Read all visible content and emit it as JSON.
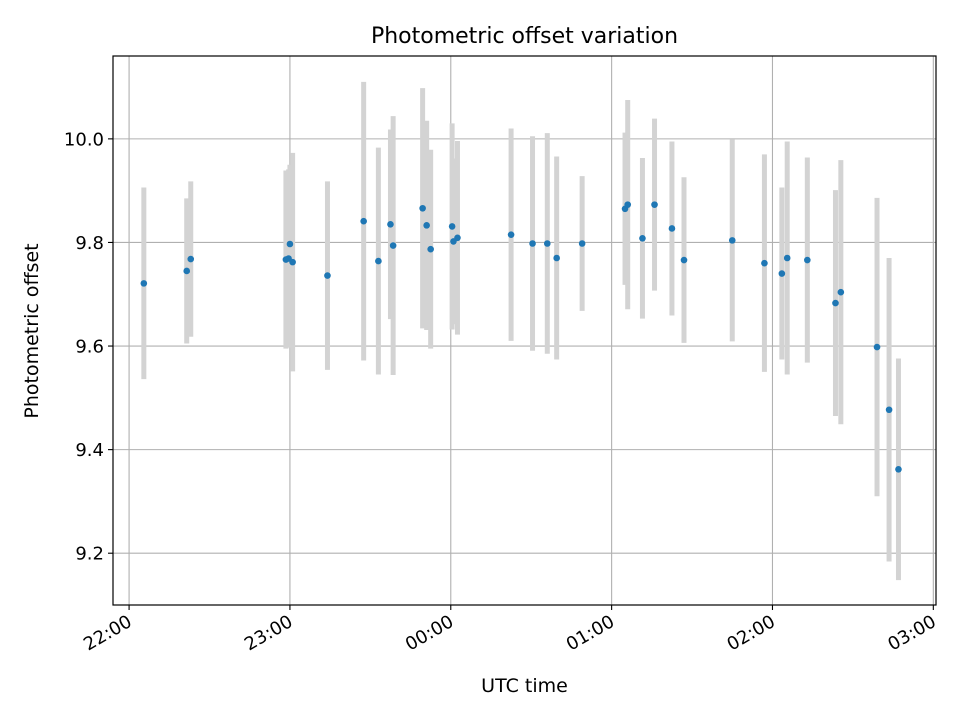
{
  "chart_data": {
    "type": "scatter",
    "title": "Photometric offset variation",
    "xlabel": "UTC time",
    "ylabel": "Photometric offset",
    "x_ticks": [
      "22:00",
      "23:00",
      "00:00",
      "01:00",
      "02:00",
      "03:00"
    ],
    "y_ticks": [
      "9.2",
      "9.4",
      "9.6",
      "9.8",
      "10.0"
    ],
    "xlim": [
      "21:54",
      "03:01"
    ],
    "ylim": [
      9.1,
      10.16
    ],
    "grid": true,
    "colors": {
      "point": "#1f77b4",
      "errorbar": "#d3d3d3",
      "grid": "#b0b0b0"
    },
    "points": [
      {
        "x": "22:05.5",
        "y": 9.721,
        "err": 0.185
      },
      {
        "x": "22:21.5",
        "y": 9.745,
        "err": 0.14
      },
      {
        "x": "22:23.0",
        "y": 9.768,
        "err": 0.15
      },
      {
        "x": "22:58.5",
        "y": 9.767,
        "err": 0.172
      },
      {
        "x": "22:59.5",
        "y": 9.769,
        "err": 0.172
      },
      {
        "x": "23:00.0",
        "y": 9.797,
        "err": 0.153
      },
      {
        "x": "23:01.0",
        "y": 9.762,
        "err": 0.211
      },
      {
        "x": "23:14.0",
        "y": 9.736,
        "err": 0.182
      },
      {
        "x": "23:27.5",
        "y": 9.841,
        "err": 0.269
      },
      {
        "x": "23:33.0",
        "y": 9.764,
        "err": 0.219
      },
      {
        "x": "23:37.5",
        "y": 9.835,
        "err": 0.183
      },
      {
        "x": "23:38.5",
        "y": 9.794,
        "err": 0.25
      },
      {
        "x": "23:49.5",
        "y": 9.866,
        "err": 0.232
      },
      {
        "x": "23:51.0",
        "y": 9.833,
        "err": 0.202
      },
      {
        "x": "23:52.5",
        "y": 9.787,
        "err": 0.192
      },
      {
        "x": "00:00.5",
        "y": 9.831,
        "err": 0.199
      },
      {
        "x": "00:01.0",
        "y": 9.802,
        "err": 0.16
      },
      {
        "x": "00:02.5",
        "y": 9.809,
        "err": 0.187
      },
      {
        "x": "00:22.5",
        "y": 9.815,
        "err": 0.205
      },
      {
        "x": "00:30.5",
        "y": 9.798,
        "err": 0.207
      },
      {
        "x": "00:36.0",
        "y": 9.798,
        "err": 0.213
      },
      {
        "x": "00:39.5",
        "y": 9.77,
        "err": 0.196
      },
      {
        "x": "00:49.0",
        "y": 9.798,
        "err": 0.13
      },
      {
        "x": "01:05.0",
        "y": 9.865,
        "err": 0.147
      },
      {
        "x": "01:06.0",
        "y": 9.873,
        "err": 0.202
      },
      {
        "x": "01:11.5",
        "y": 9.808,
        "err": 0.155
      },
      {
        "x": "01:16.0",
        "y": 9.873,
        "err": 0.166
      },
      {
        "x": "01:22.5",
        "y": 9.827,
        "err": 0.168
      },
      {
        "x": "01:27.0",
        "y": 9.766,
        "err": 0.16
      },
      {
        "x": "01:45.0",
        "y": 9.804,
        "err": 0.195
      },
      {
        "x": "01:57.0",
        "y": 9.76,
        "err": 0.21
      },
      {
        "x": "02:03.5",
        "y": 9.74,
        "err": 0.166
      },
      {
        "x": "02:05.5",
        "y": 9.77,
        "err": 0.225
      },
      {
        "x": "02:13.0",
        "y": 9.766,
        "err": 0.198
      },
      {
        "x": "02:23.5",
        "y": 9.683,
        "err": 0.218
      },
      {
        "x": "02:25.5",
        "y": 9.704,
        "err": 0.255
      },
      {
        "x": "02:39.0",
        "y": 9.598,
        "err": 0.288
      },
      {
        "x": "02:43.5",
        "y": 9.477,
        "err": 0.293
      },
      {
        "x": "02:47.0",
        "y": 9.362,
        "err": 0.214
      }
    ]
  }
}
